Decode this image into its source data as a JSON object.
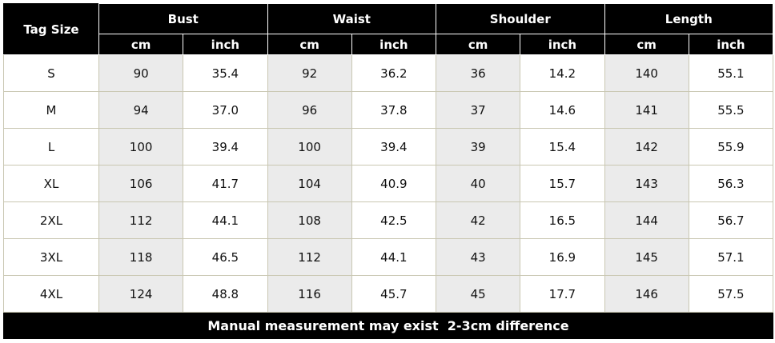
{
  "table": {
    "tag_size": "Tag Size",
    "groups": [
      {
        "name": "Bust",
        "units": [
          "cm",
          "inch"
        ]
      },
      {
        "name": "Waist",
        "units": [
          "cm",
          "inch"
        ]
      },
      {
        "name": "Shoulder",
        "units": [
          "cm",
          "inch"
        ]
      },
      {
        "name": "Length",
        "units": [
          "cm",
          "inch"
        ]
      }
    ],
    "rows": [
      [
        "S",
        "90",
        "35.4",
        "92",
        "36.2",
        "36",
        "14.2",
        "140",
        "55.1"
      ],
      [
        "M",
        "94",
        "37.0",
        "96",
        "37.8",
        "37",
        "14.6",
        "141",
        "55.5"
      ],
      [
        "L",
        "100",
        "39.4",
        "100",
        "39.4",
        "39",
        "15.4",
        "142",
        "55.9"
      ],
      [
        "XL",
        "106",
        "41.7",
        "104",
        "40.9",
        "40",
        "15.7",
        "143",
        "56.3"
      ],
      [
        "2XL",
        "112",
        "44.1",
        "108",
        "42.5",
        "42",
        "16.5",
        "144",
        "56.7"
      ],
      [
        "3XL",
        "118",
        "46.5",
        "112",
        "44.1",
        "43",
        "16.9",
        "145",
        "57.1"
      ],
      [
        "4XL",
        "124",
        "48.8",
        "116",
        "45.7",
        "45",
        "17.7",
        "146",
        "57.5"
      ]
    ],
    "footer": "Manual measurement may exist  2-3cm difference"
  }
}
